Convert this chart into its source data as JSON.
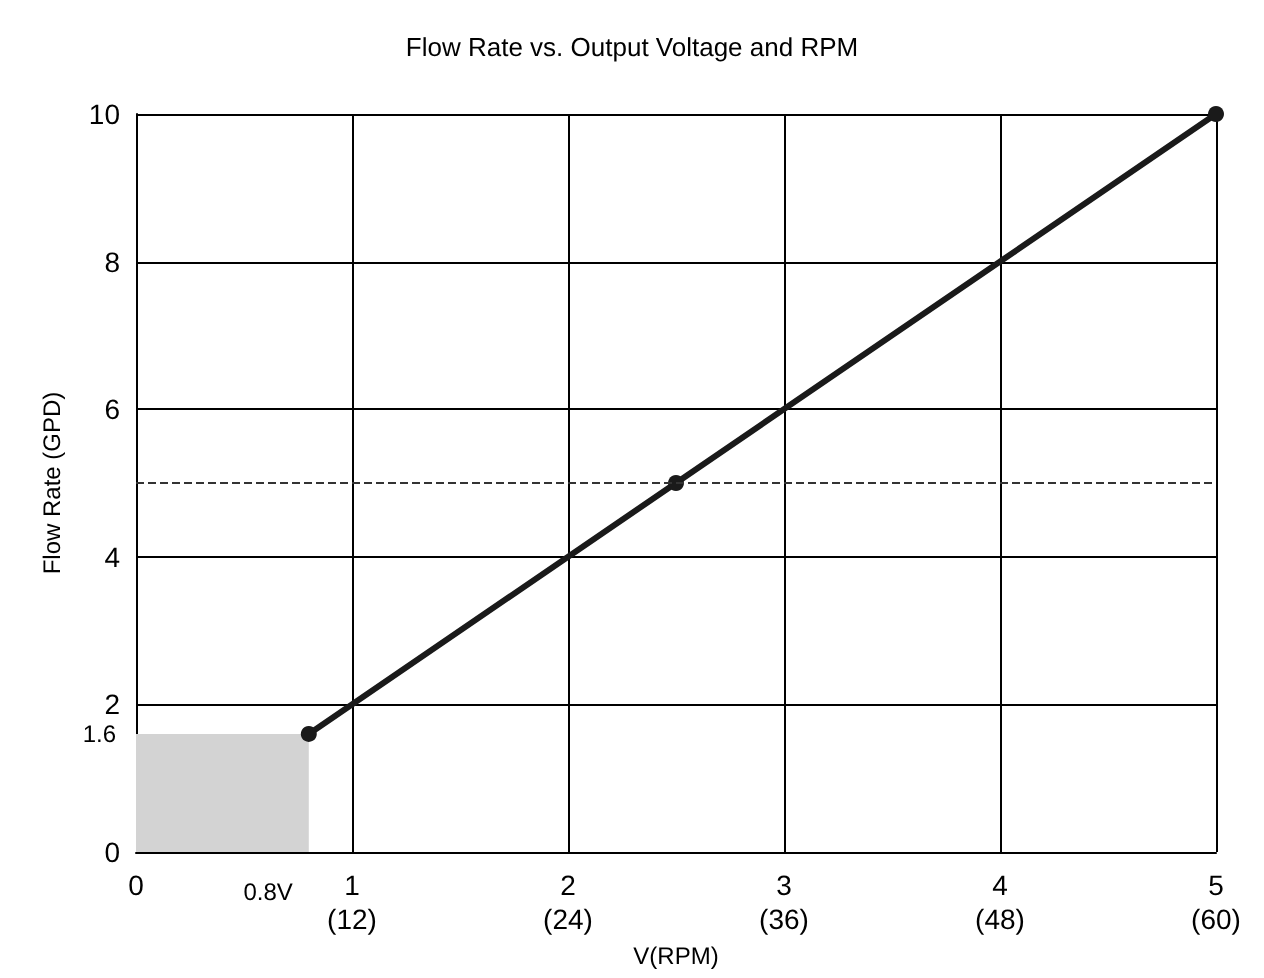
{
  "chart_data": {
    "type": "line",
    "title": "Flow Rate vs. Output Voltage and RPM",
    "xlabel": "V(RPM)",
    "ylabel": "Flow Rate (GPD)",
    "series": [
      {
        "type": "area",
        "color": "#d3d3d3",
        "x": [
          0,
          0.8
        ],
        "values": [
          1.6,
          1.6
        ],
        "marker": "none"
      },
      {
        "color": "#1a1a1a",
        "x": [
          0.8,
          2.5,
          5
        ],
        "values": [
          1.6,
          5,
          10
        ],
        "marker": "circle"
      }
    ],
    "xlim": [
      0,
      5
    ],
    "xticks": [
      0,
      1,
      2,
      3,
      4,
      5
    ],
    "x2lim": [
      0,
      60
    ],
    "x2ticks": [
      {
        "value": 12,
        "label": "(12)"
      },
      {
        "value": 24,
        "label": "(24)"
      },
      {
        "value": 36,
        "label": "(36)"
      },
      {
        "value": 48,
        "label": "(48)"
      },
      {
        "value": 60,
        "label": "(60)"
      }
    ],
    "ylim": [
      0,
      10
    ],
    "yticks": [
      0,
      2,
      4,
      6,
      8,
      10
    ],
    "ref_lines": [
      {
        "axis": "y",
        "value": 5,
        "line_style": "dashed",
        "color": "#333333"
      }
    ],
    "annotations": [
      {
        "text": "0.8V",
        "x": 0.8,
        "y": 0
      },
      {
        "text": "1.6",
        "x": 0,
        "y": 1.6
      }
    ],
    "grid": true
  }
}
